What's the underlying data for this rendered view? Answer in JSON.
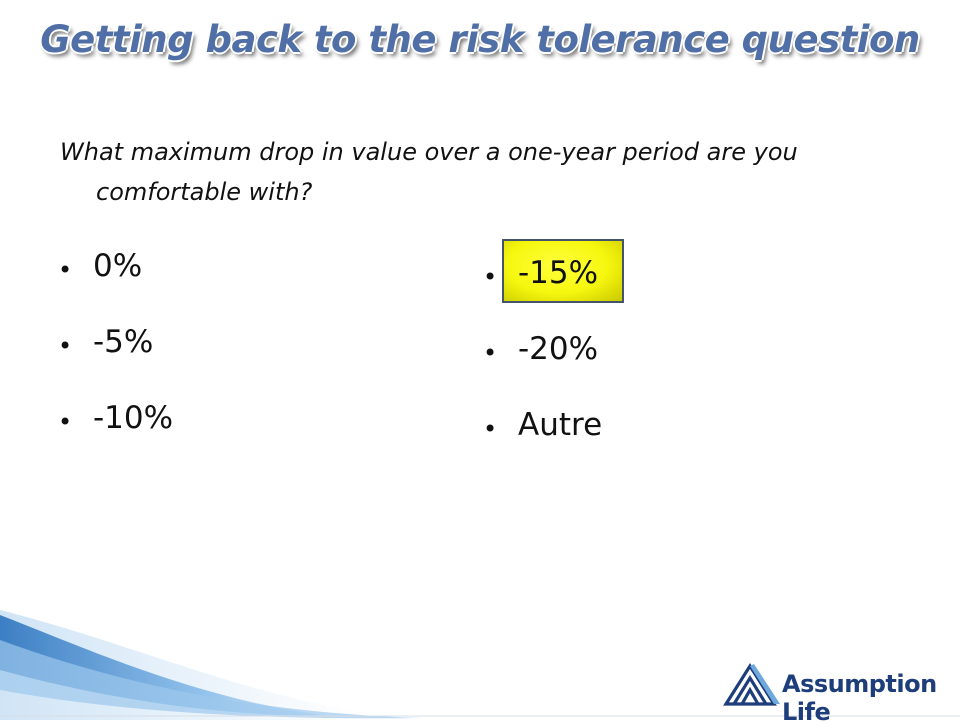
{
  "slide": {
    "title": "Getting back to the risk tolerance question",
    "question": "What maximum drop in value over a one-year period are you comfortable with?",
    "bullet_glyph": "•",
    "options_left": [
      "0%",
      "-5%",
      "-10%"
    ],
    "options_right": [
      "-15%",
      "-20%",
      "Autre"
    ],
    "highlighted_option": "-15%",
    "highlight_color": "#f6f70e",
    "title_color": "#4f6fa6"
  },
  "logo": {
    "text": "Assumption Life",
    "icon": "assumption-life-pyramid-icon",
    "color": "#1d3d7b"
  }
}
